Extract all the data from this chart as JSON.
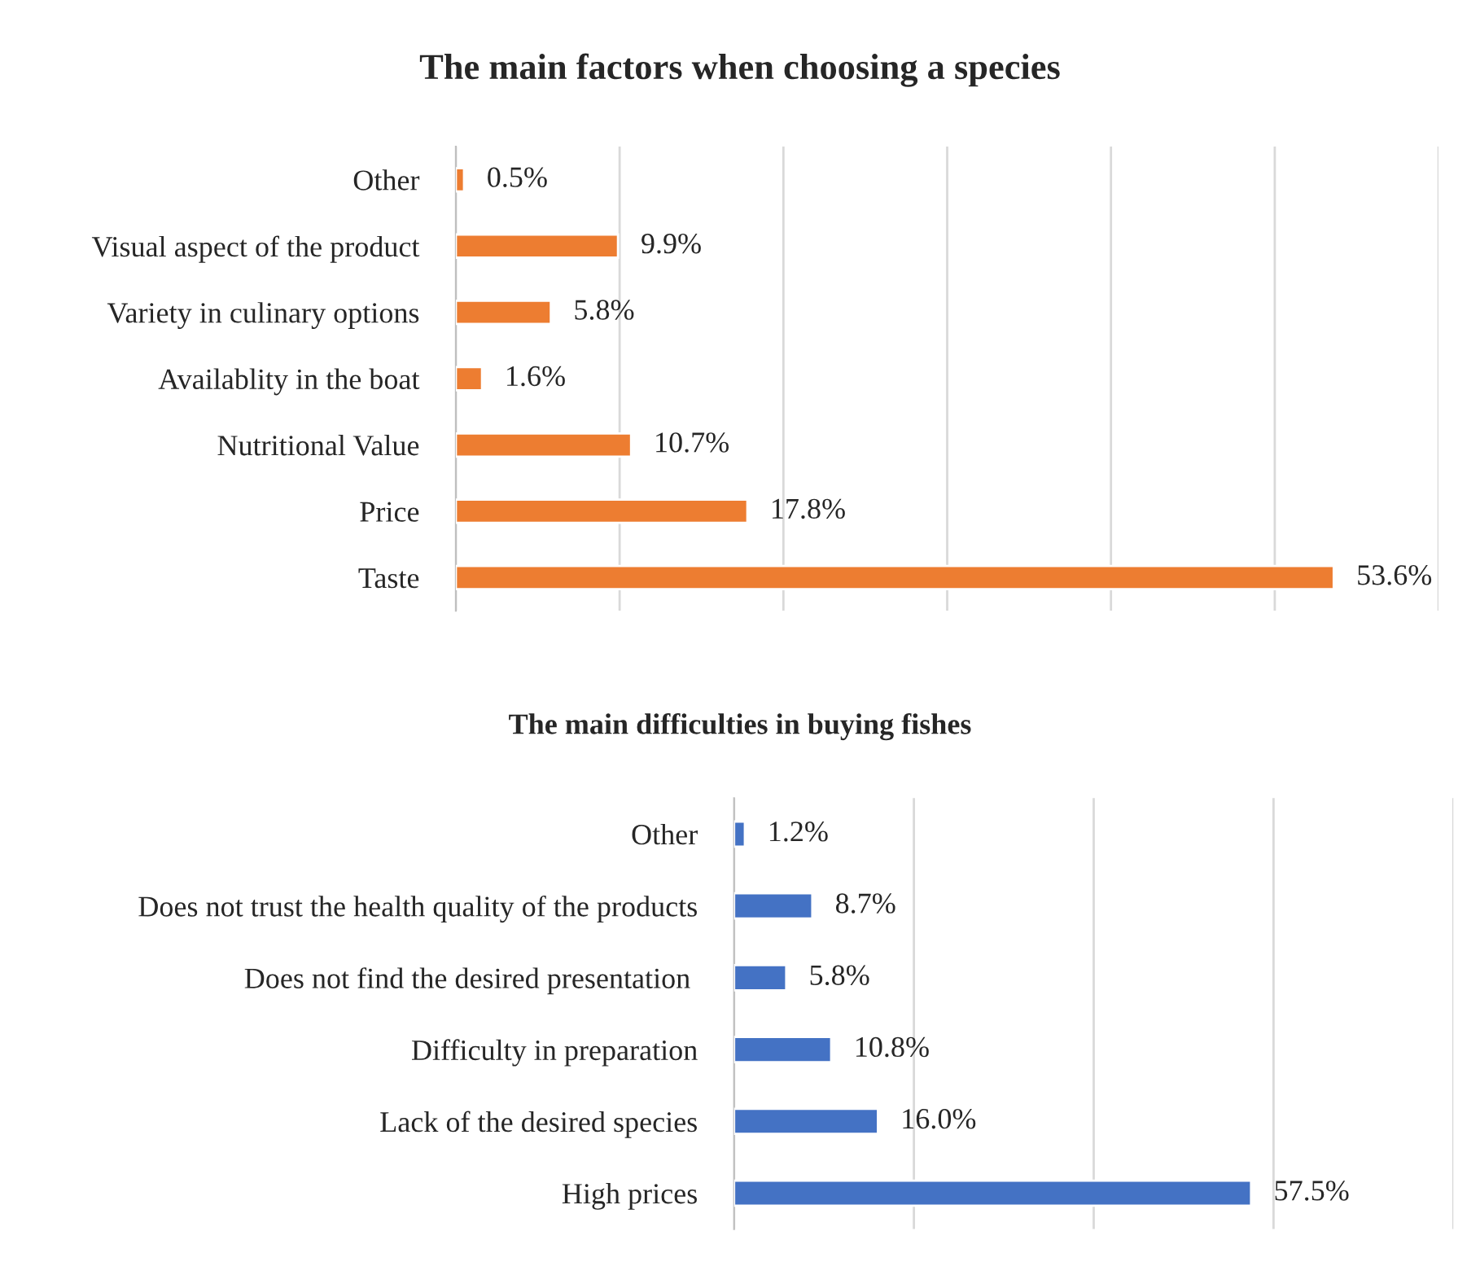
{
  "chart_data": [
    {
      "type": "bar",
      "orientation": "horizontal",
      "title": "The main factors when choosing a species",
      "categories": [
        "Other",
        "Visual aspect of the product",
        "Variety in culinary options",
        "Availablity in the boat",
        "Nutritional Value",
        "Price",
        "Taste"
      ],
      "values": [
        0.5,
        9.9,
        5.8,
        1.6,
        10.7,
        17.8,
        53.6
      ],
      "value_labels": [
        "0.5%",
        "9.9%",
        "5.8%",
        "1.6%",
        "10.7%",
        "17.8%",
        "53.6%"
      ],
      "color": "#ed7d31",
      "xlim": [
        0,
        60
      ],
      "xticks": [
        {
          "value": 0,
          "label": null
        },
        {
          "value": 10,
          "label": null
        },
        {
          "value": 20,
          "label": null
        },
        {
          "value": 30,
          "label": null
        },
        {
          "value": 40,
          "label": null
        },
        {
          "value": 50,
          "label": null
        },
        {
          "value": 60,
          "label": null
        }
      ],
      "grid": "x",
      "tick_labels": "y"
    },
    {
      "type": "bar",
      "orientation": "horizontal",
      "title": "The main difficulties in buying fishes",
      "categories": [
        "Other",
        "Does not trust the health quality of the products",
        "Does not find the desired presentation ",
        "Difficulty in preparation",
        "Lack of the desired species",
        "High prices"
      ],
      "values": [
        1.2,
        8.7,
        5.8,
        10.8,
        16.0,
        57.5
      ],
      "value_labels": [
        "1.2%",
        "8.7%",
        "5.8%",
        "10.8%",
        "16.0%",
        "57.5%"
      ],
      "color": "#4472c4",
      "xlim": [
        0,
        80
      ],
      "xticks": [
        {
          "value": 0,
          "label": null
        },
        {
          "value": 20,
          "label": null
        },
        {
          "value": 40,
          "label": null
        },
        {
          "value": 60,
          "label": null
        },
        {
          "value": 80,
          "label": null
        }
      ],
      "grid": "x",
      "tick_labels": "y"
    }
  ]
}
